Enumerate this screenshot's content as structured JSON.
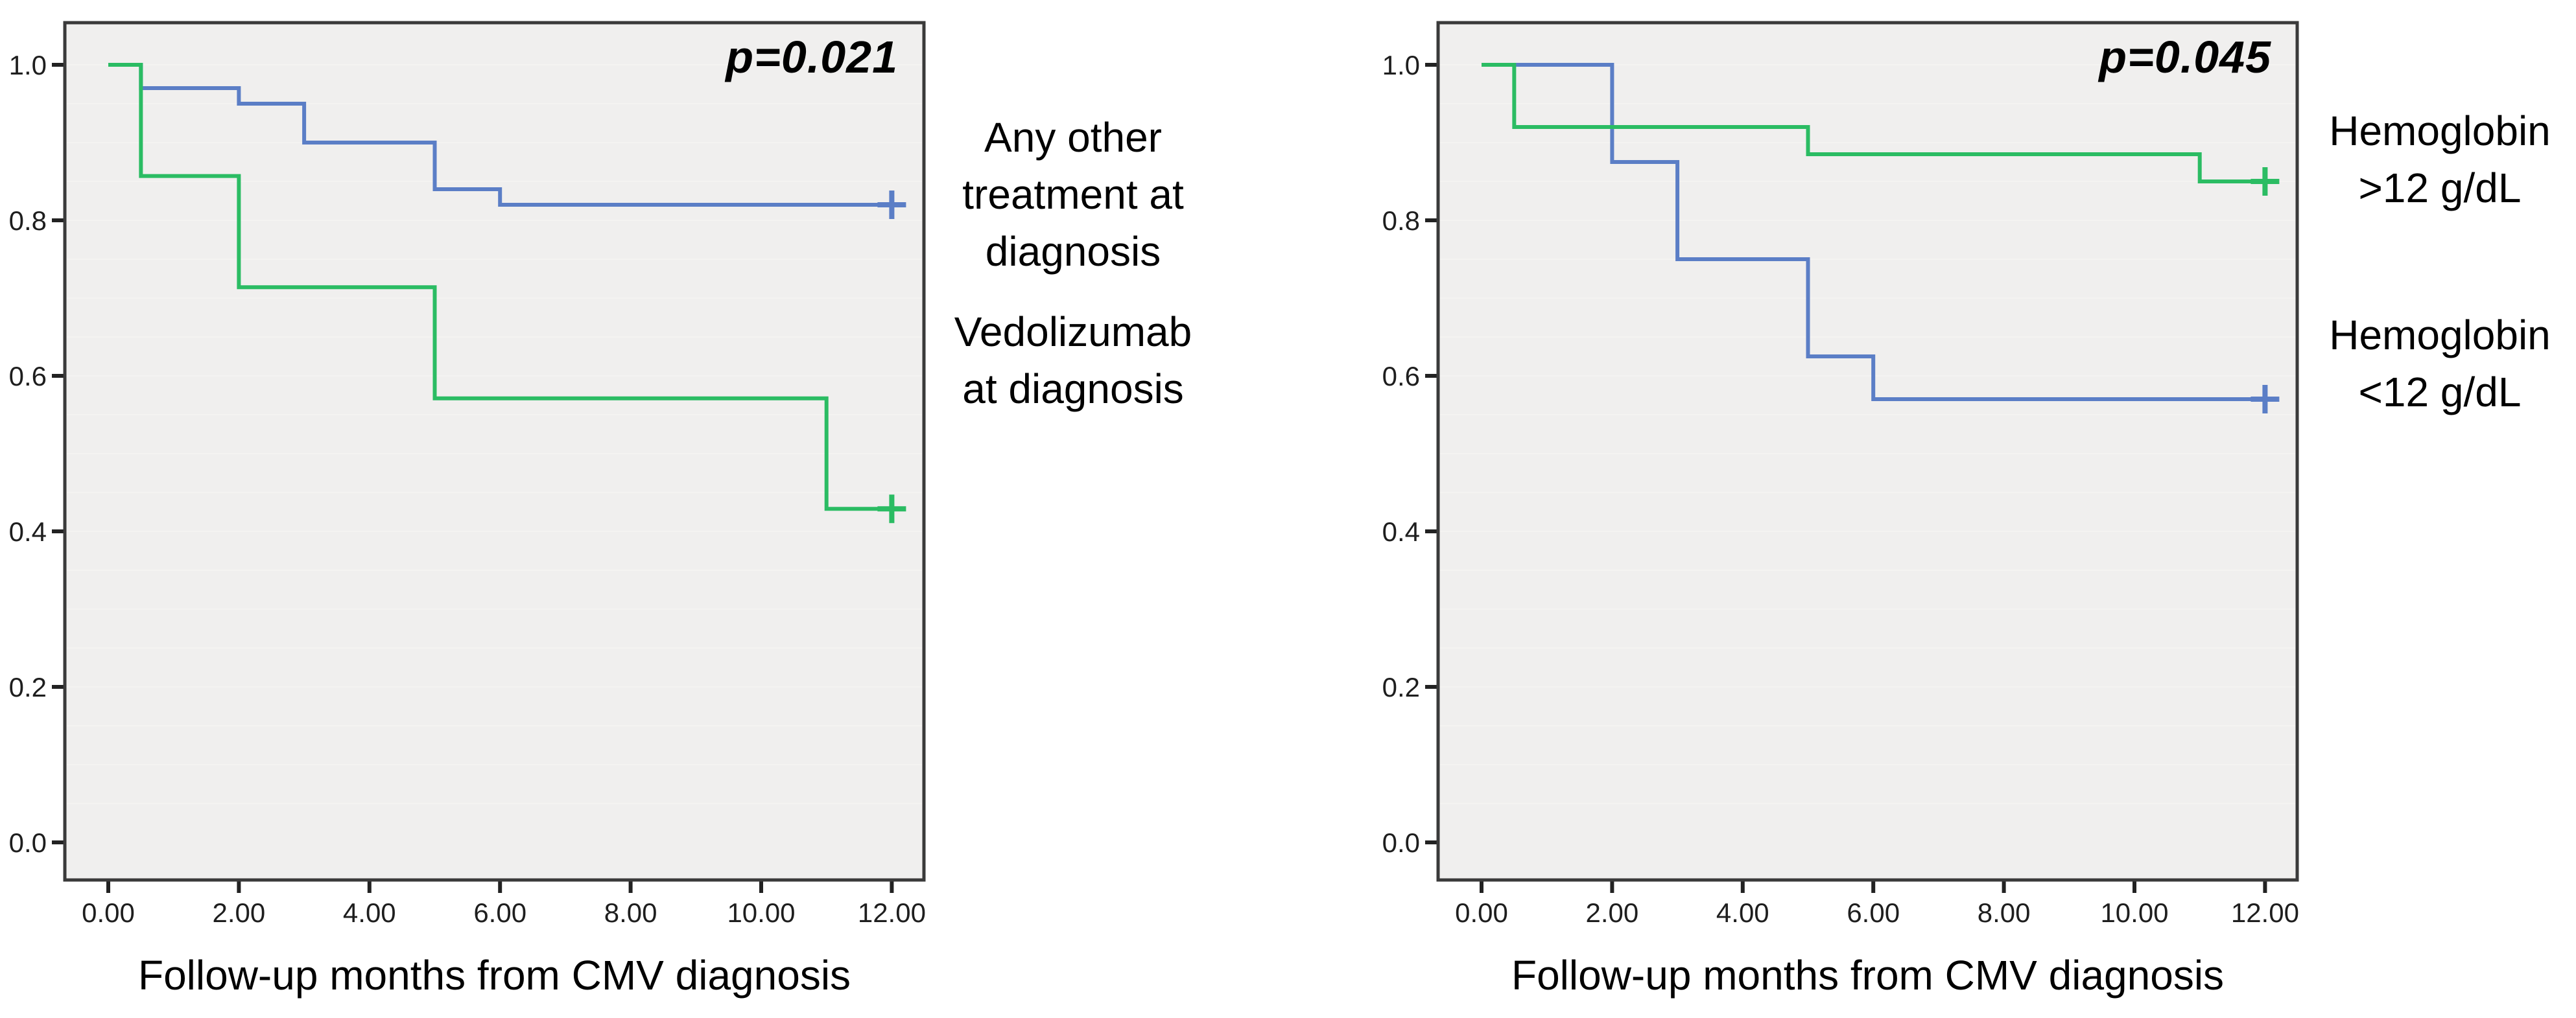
{
  "figure": {
    "background": "#ffffff",
    "plot_bg": "#f0efee",
    "border_color": "#3a3a3a",
    "grid_color": "#f4f3f1",
    "blue": "#5b7ec6",
    "green": "#2bbc63"
  },
  "chart_data": [
    {
      "type": "line",
      "subtype": "kaplan_meier_step",
      "panel": "left",
      "p_value": "p=0.021",
      "xlabel": "Follow-up months from CMV diagnosis",
      "x_ticks": {
        "values": [
          0,
          2,
          4,
          6,
          8,
          10,
          12
        ],
        "labels": [
          "0.00",
          "2.00",
          "4.00",
          "6.00",
          "8.00",
          "10.00",
          "12.00"
        ]
      },
      "y_ticks": {
        "values": [
          0,
          0.2,
          0.4,
          0.6,
          0.8,
          1.0
        ],
        "labels": [
          "0.0",
          "0.2",
          "0.4",
          "0.6",
          "0.8",
          "1.0"
        ]
      },
      "xlim": [
        0,
        12.5
      ],
      "ylim": [
        0,
        1.05
      ],
      "grid": {
        "show": true,
        "step": 0.05
      },
      "legend_position": "right",
      "series": [
        {
          "name": "Any other treatment at diagnosis",
          "label_lines": [
            "Any other",
            "treatment at",
            "diagnosis"
          ],
          "color": "#5b7ec6",
          "draw_order": 1,
          "censor_marker": "+",
          "points": [
            [
              0,
              1.0
            ],
            [
              0.5,
              0.97
            ],
            [
              2,
              0.95
            ],
            [
              3,
              0.9
            ],
            [
              5,
              0.84
            ],
            [
              6,
              0.82
            ]
          ],
          "censored": [
            [
              12,
              0.82
            ]
          ]
        },
        {
          "name": "Vedolizumab at diagnosis",
          "label_lines": [
            "Vedolizumab",
            "at diagnosis"
          ],
          "color": "#2bbc63",
          "draw_order": 2,
          "censor_marker": "+",
          "points": [
            [
              0,
              1.0
            ],
            [
              0.5,
              0.857
            ],
            [
              2,
              0.714
            ],
            [
              5,
              0.571
            ],
            [
              11,
              0.429
            ]
          ],
          "censored": [
            [
              12,
              0.429
            ]
          ]
        }
      ]
    },
    {
      "type": "line",
      "subtype": "kaplan_meier_step",
      "panel": "right",
      "p_value": "p=0.045",
      "xlabel": "Follow-up months from CMV diagnosis",
      "x_ticks": {
        "values": [
          0,
          2,
          4,
          6,
          8,
          10,
          12
        ],
        "labels": [
          "0.00",
          "2.00",
          "4.00",
          "6.00",
          "8.00",
          "10.00",
          "12.00"
        ]
      },
      "y_ticks": {
        "values": [
          0,
          0.2,
          0.4,
          0.6,
          0.8,
          1.0
        ],
        "labels": [
          "0.0",
          "0.2",
          "0.4",
          "0.6",
          "0.8",
          "1.0"
        ]
      },
      "xlim": [
        0,
        12.5
      ],
      "ylim": [
        0,
        1.05
      ],
      "grid": {
        "show": true,
        "step": 0.05
      },
      "legend_position": "right",
      "series": [
        {
          "name": "Hemoglobin >12 g/dL",
          "label_lines": [
            "Hemoglobin",
            ">12 g/dL"
          ],
          "color": "#2bbc63",
          "draw_order": 2,
          "censor_marker": "+",
          "points": [
            [
              0,
              1.0
            ],
            [
              0.5,
              0.92
            ],
            [
              5,
              0.885
            ],
            [
              11,
              0.85
            ]
          ],
          "censored": [
            [
              12,
              0.85
            ]
          ]
        },
        {
          "name": "Hemoglobin <12 g/dL",
          "label_lines": [
            "Hemoglobin",
            "<12 g/dL"
          ],
          "color": "#5b7ec6",
          "draw_order": 1,
          "censor_marker": "+",
          "points": [
            [
              0,
              1.0
            ],
            [
              2,
              0.875
            ],
            [
              3,
              0.75
            ],
            [
              5,
              0.625
            ],
            [
              6,
              0.57
            ]
          ],
          "censored": [
            [
              12,
              0.57
            ]
          ]
        }
      ]
    }
  ]
}
